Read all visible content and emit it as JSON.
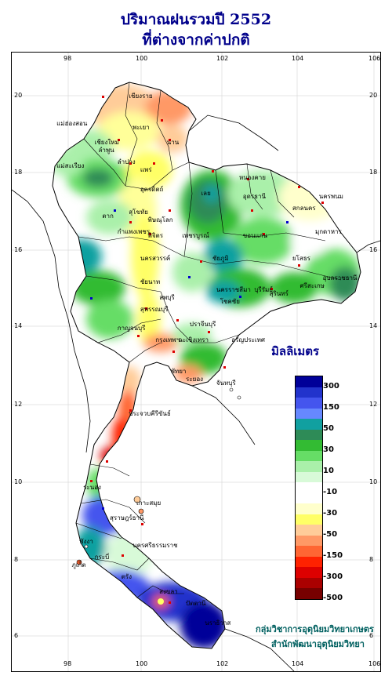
{
  "title": {
    "line1": "ปริมาณฝนรวมปี  2552",
    "line2": "ที่ต่างจากค่าปกติ"
  },
  "axes": {
    "longitude_ticks": [
      "98",
      "100",
      "102",
      "104",
      "106"
    ],
    "latitude_ticks": [
      "20",
      "18",
      "16",
      "14",
      "12",
      "10",
      "8",
      "6"
    ]
  },
  "legend": {
    "title": "มิลลิเมตร",
    "labels": [
      "300",
      "150",
      "50",
      "30",
      "10",
      "-10",
      "-30",
      "-50",
      "-150",
      "-300",
      "-500"
    ],
    "colors": [
      "#000099",
      "#2233cc",
      "#4455ee",
      "#6688ff",
      "#11a0a0",
      "#2e8b57",
      "#33bb33",
      "#66dd66",
      "#aaf0aa",
      "#d8fad8",
      "#ffffff",
      "#ffffff",
      "#ffffcc",
      "#ffff66",
      "#ffcc99",
      "#ff9966",
      "#ff6633",
      "#ff2200",
      "#dd0000",
      "#aa0000",
      "#770000"
    ]
  },
  "places": [
    {
      "name": "เชียงราย",
      "lon": 99.8,
      "lat": 20.0
    },
    {
      "name": "แม่ฮ่องสอน",
      "lon": 97.9,
      "lat": 19.3
    },
    {
      "name": "เชียงใหม่",
      "lon": 98.9,
      "lat": 18.8
    },
    {
      "name": "พะเยา",
      "lon": 99.9,
      "lat": 19.2
    },
    {
      "name": "น่าน",
      "lon": 100.8,
      "lat": 18.8
    },
    {
      "name": "ลำปาง",
      "lon": 99.5,
      "lat": 18.3
    },
    {
      "name": "ลำพูน",
      "lon": 99.0,
      "lat": 18.6
    },
    {
      "name": "แพร่",
      "lon": 100.1,
      "lat": 18.1
    },
    {
      "name": "แม่สะเรียง",
      "lon": 97.9,
      "lat": 18.2
    },
    {
      "name": "อุตรดิตถ์",
      "lon": 100.1,
      "lat": 17.6
    },
    {
      "name": "หนองคาย",
      "lon": 102.7,
      "lat": 17.9
    },
    {
      "name": "อุดรธานี",
      "lon": 102.8,
      "lat": 17.4
    },
    {
      "name": "นครพนม",
      "lon": 104.8,
      "lat": 17.4
    },
    {
      "name": "สกลนคร",
      "lon": 104.1,
      "lat": 17.1
    },
    {
      "name": "เลย",
      "lon": 101.7,
      "lat": 17.5
    },
    {
      "name": "ตาก",
      "lon": 99.1,
      "lat": 16.9
    },
    {
      "name": "พิษณุโลก",
      "lon": 100.3,
      "lat": 16.8
    },
    {
      "name": "สุโขทัย",
      "lon": 99.8,
      "lat": 17.0
    },
    {
      "name": "มุกดาหาร",
      "lon": 104.7,
      "lat": 16.5
    },
    {
      "name": "กำแพงเพชร",
      "lon": 99.5,
      "lat": 16.5
    },
    {
      "name": "พิจิตร",
      "lon": 100.3,
      "lat": 16.4
    },
    {
      "name": "เพชรบูรณ์",
      "lon": 101.2,
      "lat": 16.4
    },
    {
      "name": "ขอนแก่น",
      "lon": 102.8,
      "lat": 16.4
    },
    {
      "name": "นครสวรรค์",
      "lon": 100.1,
      "lat": 15.8
    },
    {
      "name": "ชัยภูมิ",
      "lon": 102.0,
      "lat": 15.8
    },
    {
      "name": "อุบลราชธานี",
      "lon": 104.9,
      "lat": 15.3
    },
    {
      "name": "ยโสธร",
      "lon": 104.1,
      "lat": 15.8
    },
    {
      "name": "ชัยนาท",
      "lon": 100.1,
      "lat": 15.2
    },
    {
      "name": "ลพบุรี",
      "lon": 100.6,
      "lat": 14.8
    },
    {
      "name": "นครราชสีมา",
      "lon": 102.1,
      "lat": 15.0
    },
    {
      "name": "บุรีรัมย์",
      "lon": 103.1,
      "lat": 15.0
    },
    {
      "name": "สุรินทร์",
      "lon": 103.5,
      "lat": 14.9
    },
    {
      "name": "ศรีสะเกษ",
      "lon": 104.3,
      "lat": 15.1
    },
    {
      "name": "สุพรรณบุรี",
      "lon": 100.1,
      "lat": 14.5
    },
    {
      "name": "โชคชัย",
      "lon": 102.2,
      "lat": 14.7
    },
    {
      "name": "กาญจนบุรี",
      "lon": 99.5,
      "lat": 14.0
    },
    {
      "name": "ปราจีนบุรี",
      "lon": 101.4,
      "lat": 14.1
    },
    {
      "name": "อรัญประเทศ",
      "lon": 102.5,
      "lat": 13.7
    },
    {
      "name": "กรุงเทพฯ",
      "lon": 100.5,
      "lat": 13.7
    },
    {
      "name": "ฉะเชิงเทรา",
      "lon": 101.1,
      "lat": 13.7
    },
    {
      "name": "พัทยา",
      "lon": 100.9,
      "lat": 12.9
    },
    {
      "name": "ระยอง",
      "lon": 101.3,
      "lat": 12.7
    },
    {
      "name": "จันทบุรี",
      "lon": 102.1,
      "lat": 12.6
    },
    {
      "name": "ประจวบคีรีขันธ์",
      "lon": 99.8,
      "lat": 11.8
    },
    {
      "name": "ระนอง",
      "lon": 98.6,
      "lat": 9.9
    },
    {
      "name": "เกาะสมุย",
      "lon": 100.0,
      "lat": 9.5
    },
    {
      "name": "สุราษฎร์ธานี",
      "lon": 99.3,
      "lat": 9.1
    },
    {
      "name": "ภูเก็ต",
      "lon": 98.3,
      "lat": 7.9
    },
    {
      "name": "พังงา",
      "lon": 98.5,
      "lat": 8.5
    },
    {
      "name": "กระบี่",
      "lon": 98.9,
      "lat": 8.1
    },
    {
      "name": "นครศรีธรรมราช",
      "lon": 99.9,
      "lat": 8.4
    },
    {
      "name": "ตรัง",
      "lon": 99.6,
      "lat": 7.6
    },
    {
      "name": "สงขลา",
      "lon": 100.6,
      "lat": 7.2
    },
    {
      "name": "ปัตตานี",
      "lon": 101.3,
      "lat": 6.9
    },
    {
      "name": "นราธิวาส",
      "lon": 101.8,
      "lat": 6.4
    }
  ],
  "credit": {
    "line1": "กลุ่มวิชาการอุตุนิยมวิทยาเกษตร",
    "line2": "สำนักพัฒนาอุตุนิยมวิทยา"
  }
}
